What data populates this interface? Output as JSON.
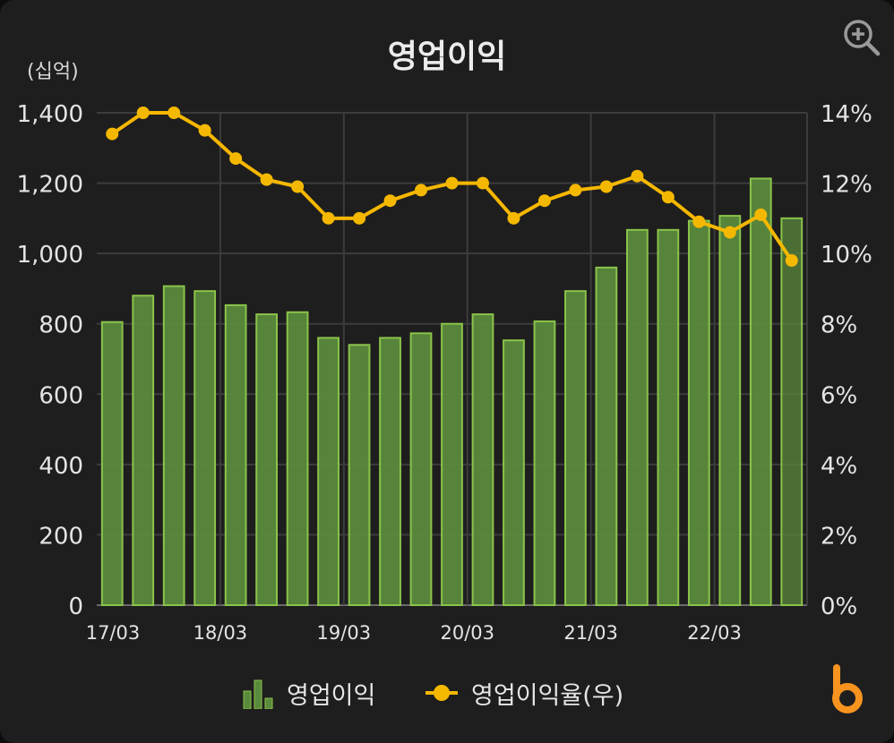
{
  "chart": {
    "title": "영업이익",
    "unit_label": "(십억)"
  },
  "legend": {
    "bars_label": "영업이익",
    "line_label": "영업이익율(우)"
  },
  "icons": {
    "zoom": "zoom-in-icon",
    "logo": "brand-logo-b"
  },
  "colors": {
    "bar_fill": "#5a8a3c",
    "bar_edge": "#8bc34a",
    "line": "#f5b800",
    "background": "#1e1e1e"
  },
  "chart_data": {
    "type": "bar",
    "title": "영업이익",
    "ylabel_left": "(십억)",
    "x_tick_labels": [
      "17/03",
      "18/03",
      "19/03",
      "20/03",
      "21/03",
      "22/03"
    ],
    "left_axis": {
      "ylim": [
        0,
        1400
      ],
      "ticks": [
        "0",
        "200",
        "400",
        "600",
        "800",
        "1,000",
        "1,200",
        "1,400"
      ]
    },
    "right_axis": {
      "ylim": [
        0,
        14
      ],
      "ticks": [
        "0%",
        "2%",
        "4%",
        "6%",
        "8%",
        "10%",
        "12%",
        "14%"
      ]
    },
    "grid": true,
    "legend_position": "bottom",
    "series": [
      {
        "name": "영업이익",
        "type": "bar",
        "axis": "left",
        "values": [
          805,
          880,
          907,
          893,
          853,
          827,
          833,
          760,
          740,
          760,
          773,
          800,
          827,
          753,
          807,
          893,
          960,
          1067,
          1067,
          1093,
          1107,
          1213,
          1100
        ]
      },
      {
        "name": "영업이익율(우)",
        "type": "line",
        "axis": "right",
        "values": [
          13.4,
          14.0,
          14.0,
          13.5,
          12.7,
          12.1,
          11.9,
          11.0,
          11.0,
          11.5,
          11.8,
          12.0,
          12.0,
          11.0,
          11.5,
          11.8,
          11.9,
          12.2,
          11.6,
          10.9,
          10.6,
          11.1,
          9.8
        ]
      }
    ]
  }
}
